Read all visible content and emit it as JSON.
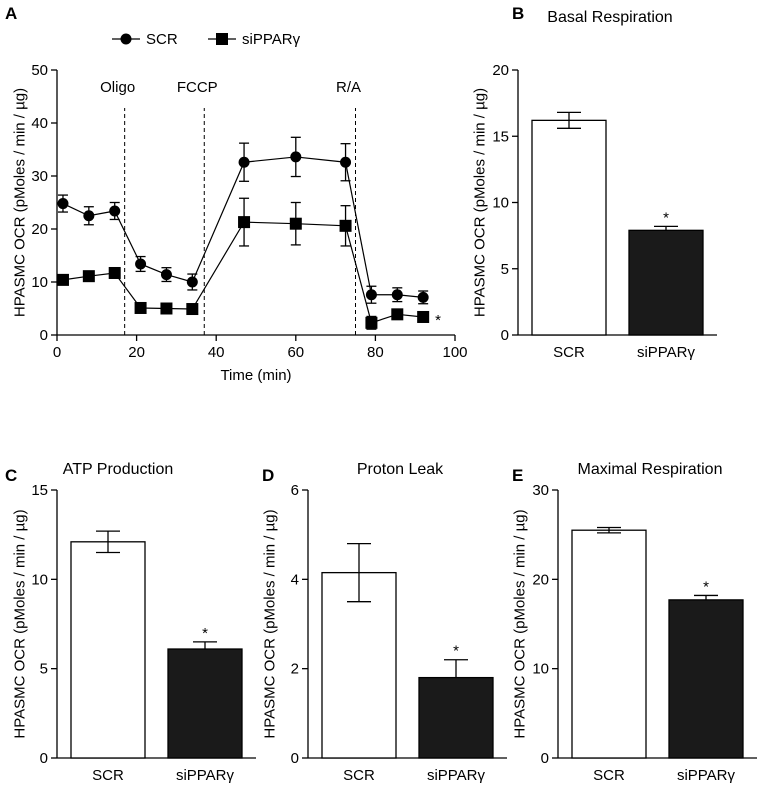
{
  "chart_data": [
    {
      "panel": "A",
      "type": "line",
      "title": "",
      "xlabel": "Time (min)",
      "ylabel": "HPASMC OCR (pMoles / min / µg)",
      "xlim": [
        0,
        100
      ],
      "ylim": [
        0,
        50
      ],
      "xticks": [
        0,
        20,
        40,
        60,
        80,
        100
      ],
      "yticks": [
        0,
        10,
        20,
        30,
        40,
        50
      ],
      "legend": {
        "placement": "top",
        "entries": [
          "SCR",
          "siPPARγ"
        ]
      },
      "annotations": [
        {
          "label": "Oligo",
          "x": 17
        },
        {
          "label": "FCCP",
          "x": 37
        },
        {
          "label": "R/A",
          "x": 75
        }
      ],
      "significance": "*",
      "x": [
        1.5,
        8,
        14.5,
        21,
        27.5,
        34,
        47,
        60,
        72.5,
        79,
        85.5,
        92
      ],
      "series": [
        {
          "name": "SCR",
          "marker": "circle",
          "values": [
            24.8,
            22.5,
            23.4,
            13.4,
            11.4,
            10.0,
            32.6,
            33.6,
            32.6,
            7.6,
            7.6,
            7.1
          ],
          "errors": [
            1.6,
            1.7,
            1.6,
            1.4,
            1.3,
            1.5,
            3.6,
            3.7,
            3.5,
            1.6,
            1.3,
            1.2
          ]
        },
        {
          "name": "siPPARγ",
          "marker": "square",
          "values": [
            10.4,
            11.1,
            11.7,
            5.1,
            5.0,
            4.9,
            21.3,
            21.0,
            20.6,
            2.3,
            3.9,
            3.4
          ],
          "errors": [
            0.3,
            0.3,
            0.3,
            0.3,
            0.3,
            0.3,
            4.5,
            4.0,
            3.8,
            1.2,
            0.8,
            0.7
          ]
        }
      ]
    },
    {
      "panel": "B",
      "type": "bar",
      "title": "Basal Respiration",
      "ylabel": "HPASMC OCR (pMoles / min / µg)",
      "categories": [
        "SCR",
        "siPPARγ"
      ],
      "values": [
        16.2,
        7.9
      ],
      "errors": [
        0.6,
        0.3
      ],
      "ylim": [
        0,
        20
      ],
      "yticks": [
        0,
        5,
        10,
        15,
        20
      ],
      "significance": "*"
    },
    {
      "panel": "C",
      "type": "bar",
      "title": "ATP Production",
      "ylabel": "HPASMC OCR (pMoles / min / µg)",
      "categories": [
        "SCR",
        "siPPARγ"
      ],
      "values": [
        12.1,
        6.1
      ],
      "errors": [
        0.6,
        0.4
      ],
      "ylim": [
        0,
        15
      ],
      "yticks": [
        0,
        5,
        10,
        15
      ],
      "significance": "*"
    },
    {
      "panel": "D",
      "type": "bar",
      "title": "Proton Leak",
      "ylabel": "HPASMC OCR (pMoles / min / µg)",
      "categories": [
        "SCR",
        "siPPARγ"
      ],
      "values": [
        4.15,
        1.8
      ],
      "errors": [
        0.65,
        0.4
      ],
      "ylim": [
        0,
        6
      ],
      "yticks": [
        0,
        2,
        4,
        6
      ],
      "significance": "*"
    },
    {
      "panel": "E",
      "type": "bar",
      "title": "Maximal Respiration",
      "ylabel": "HPASMC OCR (pMoles / min / µg)",
      "categories": [
        "SCR",
        "siPPARγ"
      ],
      "values": [
        25.5,
        17.7
      ],
      "errors": [
        0.3,
        0.5
      ],
      "ylim": [
        0,
        30
      ],
      "yticks": [
        0,
        10,
        20,
        30
      ],
      "significance": "*"
    }
  ],
  "colors": {
    "scr_fill": "#ffffff",
    "si_fill": "#1a1a1a",
    "ink": "#000000"
  }
}
